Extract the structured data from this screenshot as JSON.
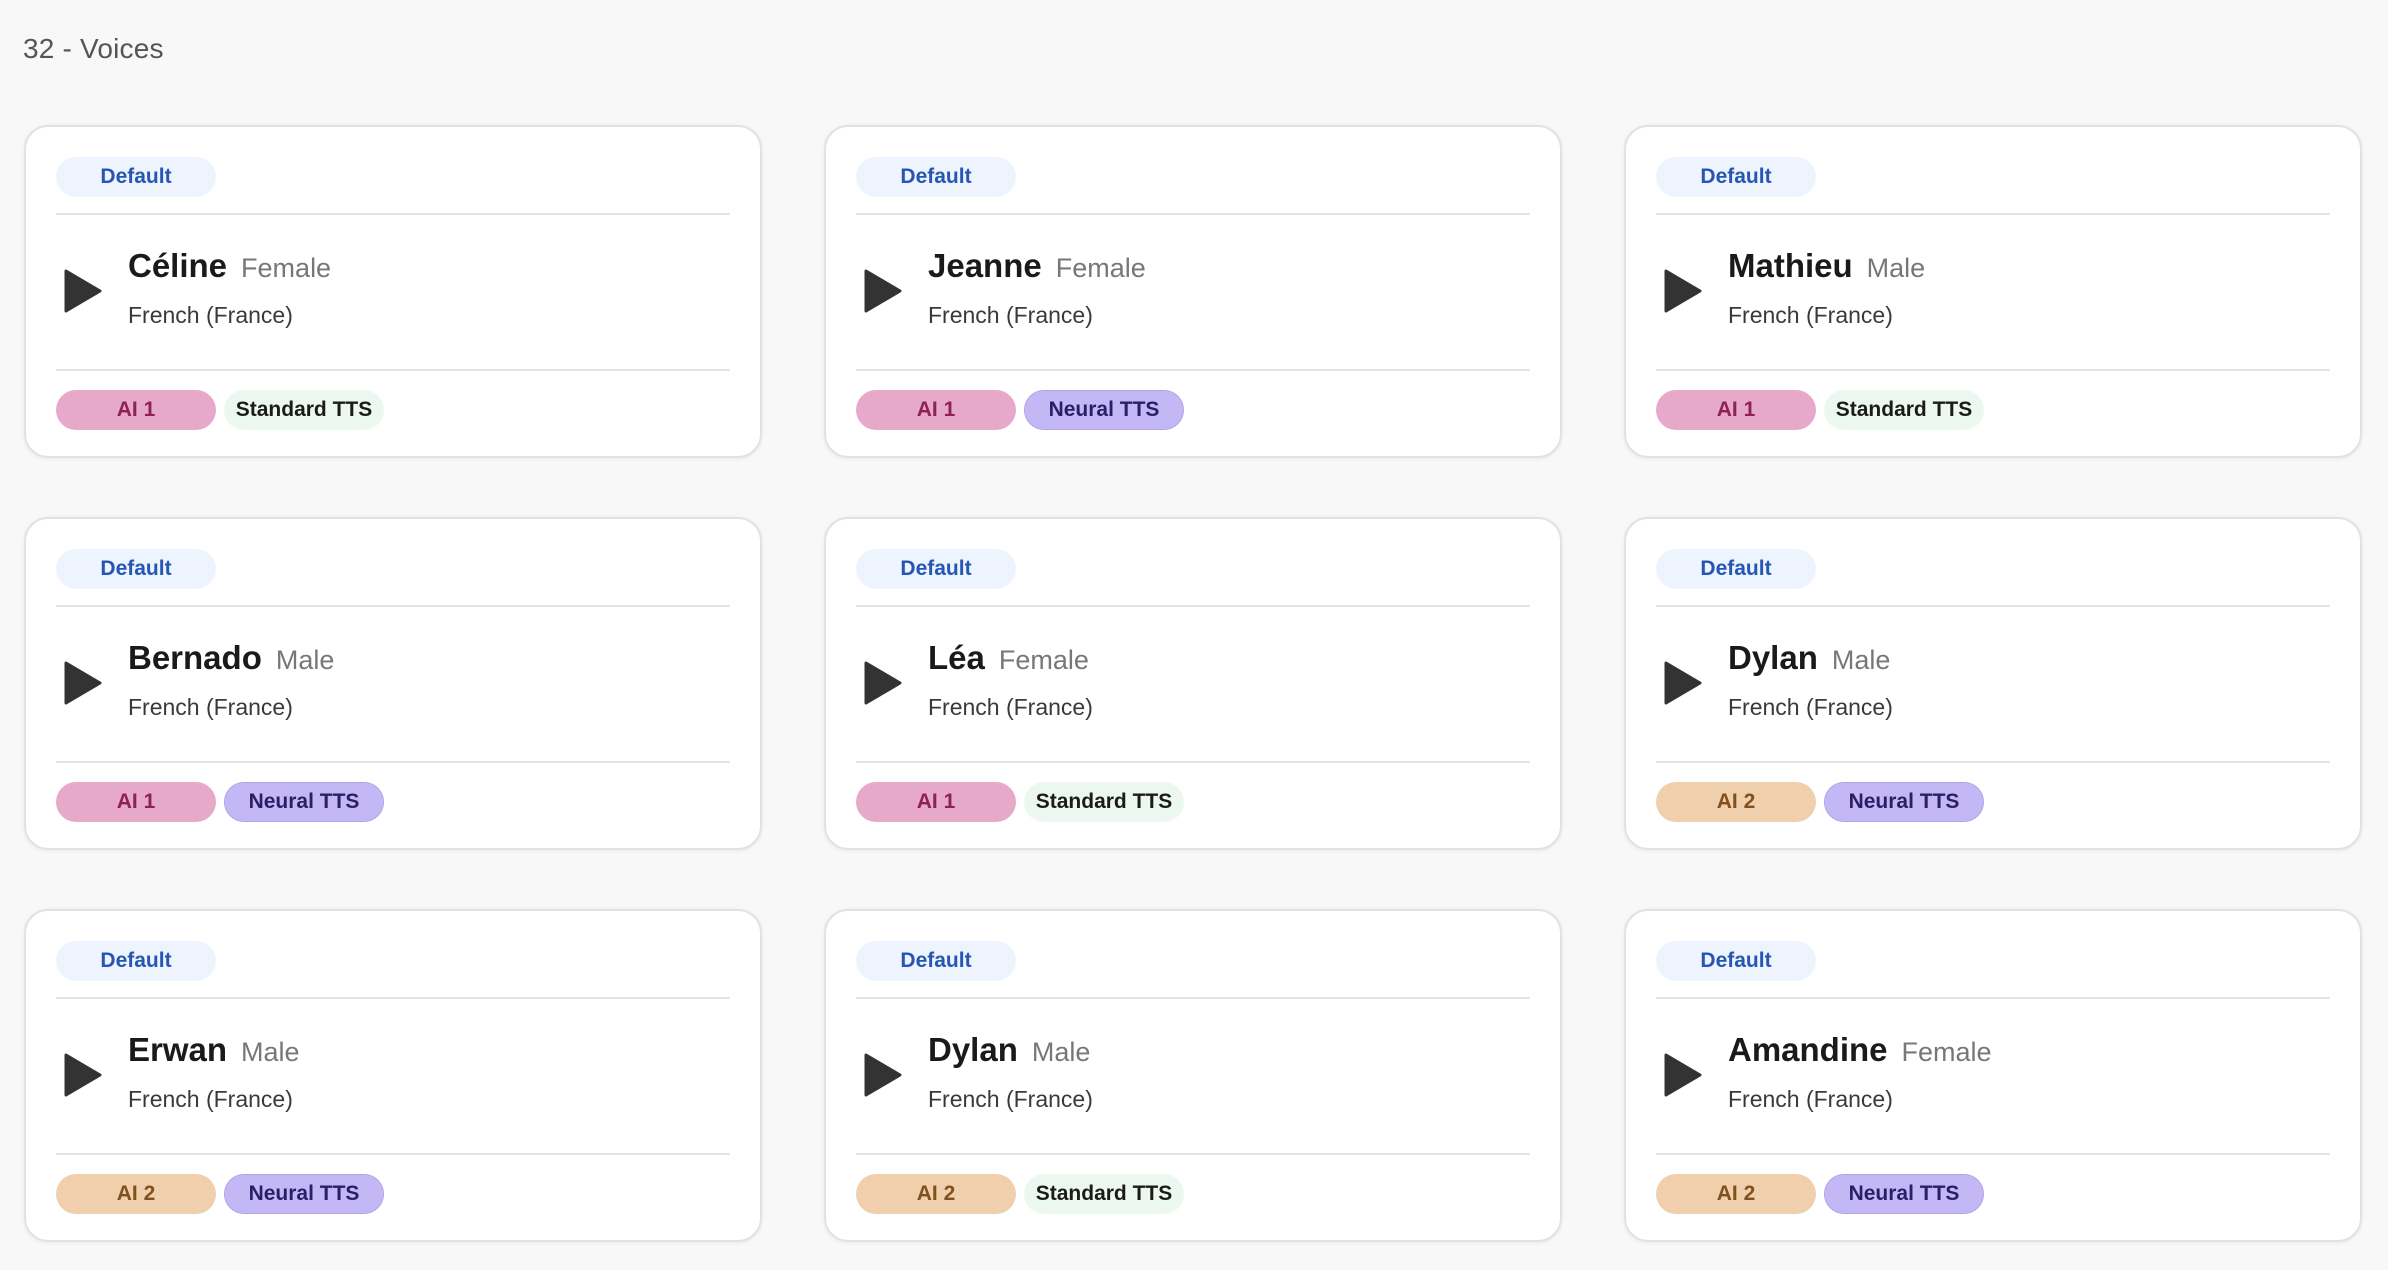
{
  "page": {
    "title": "32 - Voices"
  },
  "colors": {
    "default_badge_bg": "#eef4fd",
    "default_badge_text": "#2656b5",
    "ai1_bg": "#e7a9c9",
    "ai2_bg": "#f0cfad",
    "neural_bg": "#c3b8f5",
    "standard_bg": "#ecf8ef"
  },
  "voices": [
    {
      "badge": "Default",
      "name": "Céline",
      "gender": "Female",
      "language": "French (France)",
      "model": "AI 1",
      "engine": "Standard TTS",
      "play_icon": "play-icon"
    },
    {
      "badge": "Default",
      "name": "Jeanne",
      "gender": "Female",
      "language": "French (France)",
      "model": "AI 1",
      "engine": "Neural TTS",
      "play_icon": "play-icon"
    },
    {
      "badge": "Default",
      "name": "Mathieu",
      "gender": "Male",
      "language": "French (France)",
      "model": "AI 1",
      "engine": "Standard TTS",
      "play_icon": "play-icon"
    },
    {
      "badge": "Default",
      "name": "Bernado",
      "gender": "Male",
      "language": "French (France)",
      "model": "AI 1",
      "engine": "Neural TTS",
      "play_icon": "play-icon"
    },
    {
      "badge": "Default",
      "name": "Léa",
      "gender": "Female",
      "language": "French (France)",
      "model": "AI 1",
      "engine": "Standard TTS",
      "play_icon": "play-icon"
    },
    {
      "badge": "Default",
      "name": "Dylan",
      "gender": "Male",
      "language": "French (France)",
      "model": "AI 2",
      "engine": "Neural TTS",
      "play_icon": "play-icon"
    },
    {
      "badge": "Default",
      "name": "Erwan",
      "gender": "Male",
      "language": "French (France)",
      "model": "AI 2",
      "engine": "Neural TTS",
      "play_icon": "play-icon"
    },
    {
      "badge": "Default",
      "name": "Dylan",
      "gender": "Male",
      "language": "French (France)",
      "model": "AI 2",
      "engine": "Standard TTS",
      "play_icon": "play-icon"
    },
    {
      "badge": "Default",
      "name": "Amandine",
      "gender": "Female",
      "language": "French (France)",
      "model": "AI 2",
      "engine": "Neural TTS",
      "play_icon": "play-icon"
    }
  ]
}
